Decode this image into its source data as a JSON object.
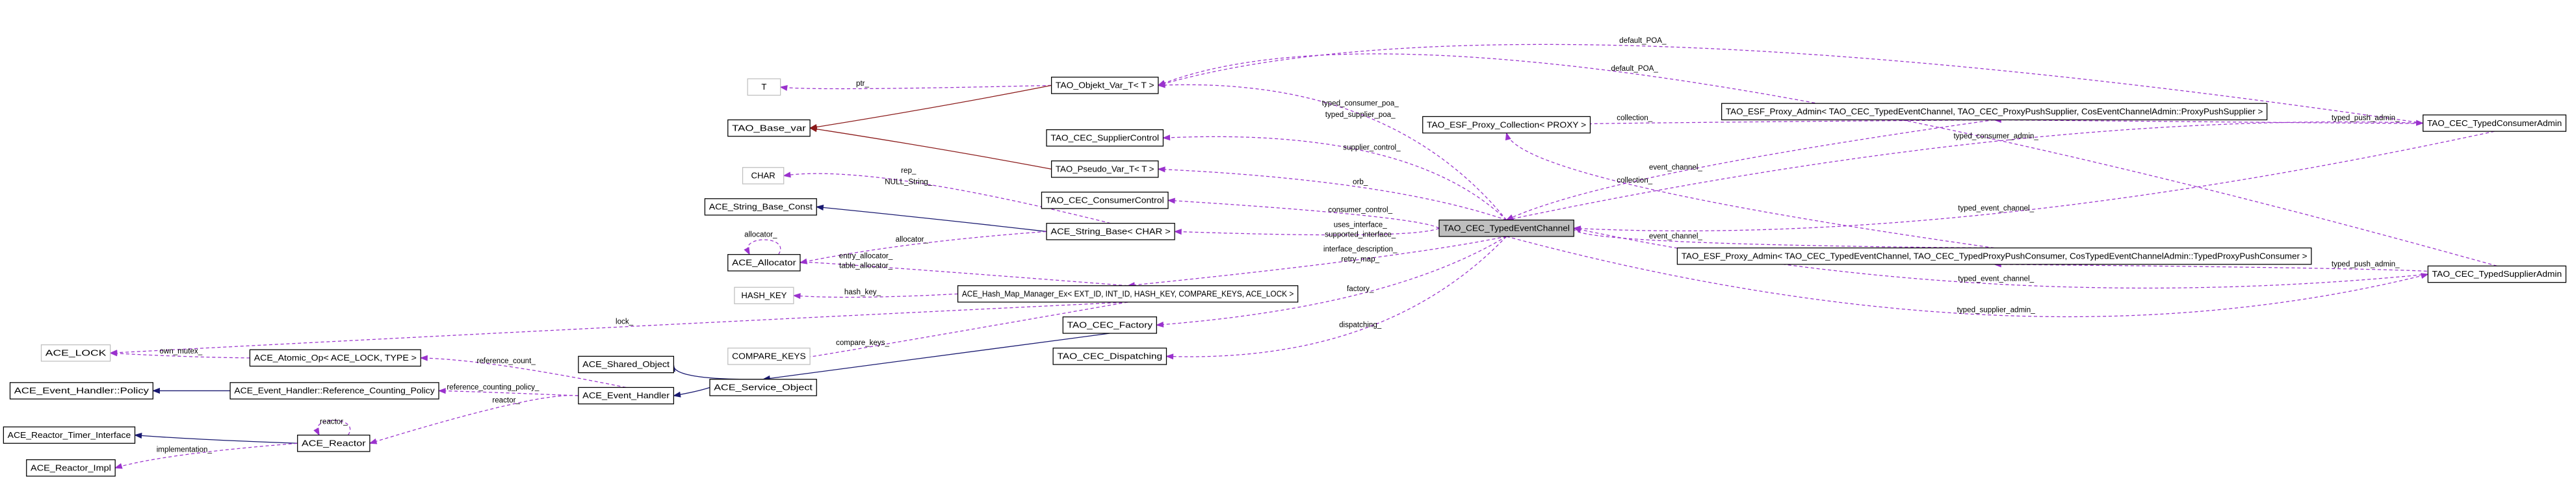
{
  "nodes": [
    "T",
    "TAO_Objekt_Var_T< T >",
    "TAO_Base_var",
    "TAO_CEC_SupplierControl",
    "TAO_Pseudo_Var_T< T >",
    "CHAR",
    "TAO_CEC_ConsumerControl",
    "ACE_String_Base_Const",
    "TAO_CEC_TypedEventChannel",
    "ACE_String_Base< CHAR >",
    "ACE_Allocator",
    "HASH_KEY",
    "ACE_Hash_Map_Manager_Ex< EXT_ID, INT_ID, HASH_KEY, COMPARE_KEYS, ACE_LOCK >",
    "TAO_CEC_Factory",
    "ACE_LOCK",
    "ACE_Atomic_Op< ACE_LOCK, TYPE >",
    "ACE_Shared_Object",
    "COMPARE_KEYS",
    "TAO_CEC_Dispatching",
    "ACE_Event_Handler::Policy",
    "ACE_Event_Handler::Reference_Counting_Policy",
    "ACE_Service_Object",
    "ACE_Event_Handler",
    "ACE_Reactor_Timer_Interface",
    "ACE_Reactor",
    "ACE_Reactor_Impl",
    "TAO_ESF_Proxy_Collection< PROXY >",
    "TAO_ESF_Proxy_Admin< TAO_CEC_TypedEventChannel, TAO_CEC_ProxyPushSupplier, CosEventChannelAdmin::ProxyPushSupplier >",
    "TAO_CEC_TypedConsumerAdmin",
    "TAO_ESF_Proxy_Admin< TAO_CEC_TypedEventChannel, TAO_CEC_TypedProxyPushConsumer, CosTypedEventChannelAdmin::TypedProxyPushConsumer >",
    "TAO_CEC_TypedSupplierAdmin"
  ],
  "edge_labels": [
    "ptr_",
    "default_POA_",
    "default_POA_",
    "typed_consumer_poa_",
    "typed_supplier_poa_",
    "supplier_control_",
    "orb_",
    "rep_",
    "NULL_String_",
    "consumer_control_",
    "uses_interface_",
    "supported_interface_",
    "allocator_",
    "allocator_",
    "entry_allocator_",
    "table_allocator_",
    "interface_description_",
    "retry_map_",
    "hash_key_",
    "factory_",
    "lock_",
    "own_mutex_",
    "compare_keys_",
    "dispatching_",
    "reference_count_",
    "reference_counting_policy_",
    "reactor_",
    "reactor_",
    "implementation_",
    "collection_",
    "collection_",
    "typed_push_admin_",
    "typed_push_admin_",
    "event_channel_",
    "event_channel_",
    "typed_consumer_admin_",
    "typed_event_channel_",
    "typed_event_channel_",
    "typed_supplier_admin_"
  ]
}
